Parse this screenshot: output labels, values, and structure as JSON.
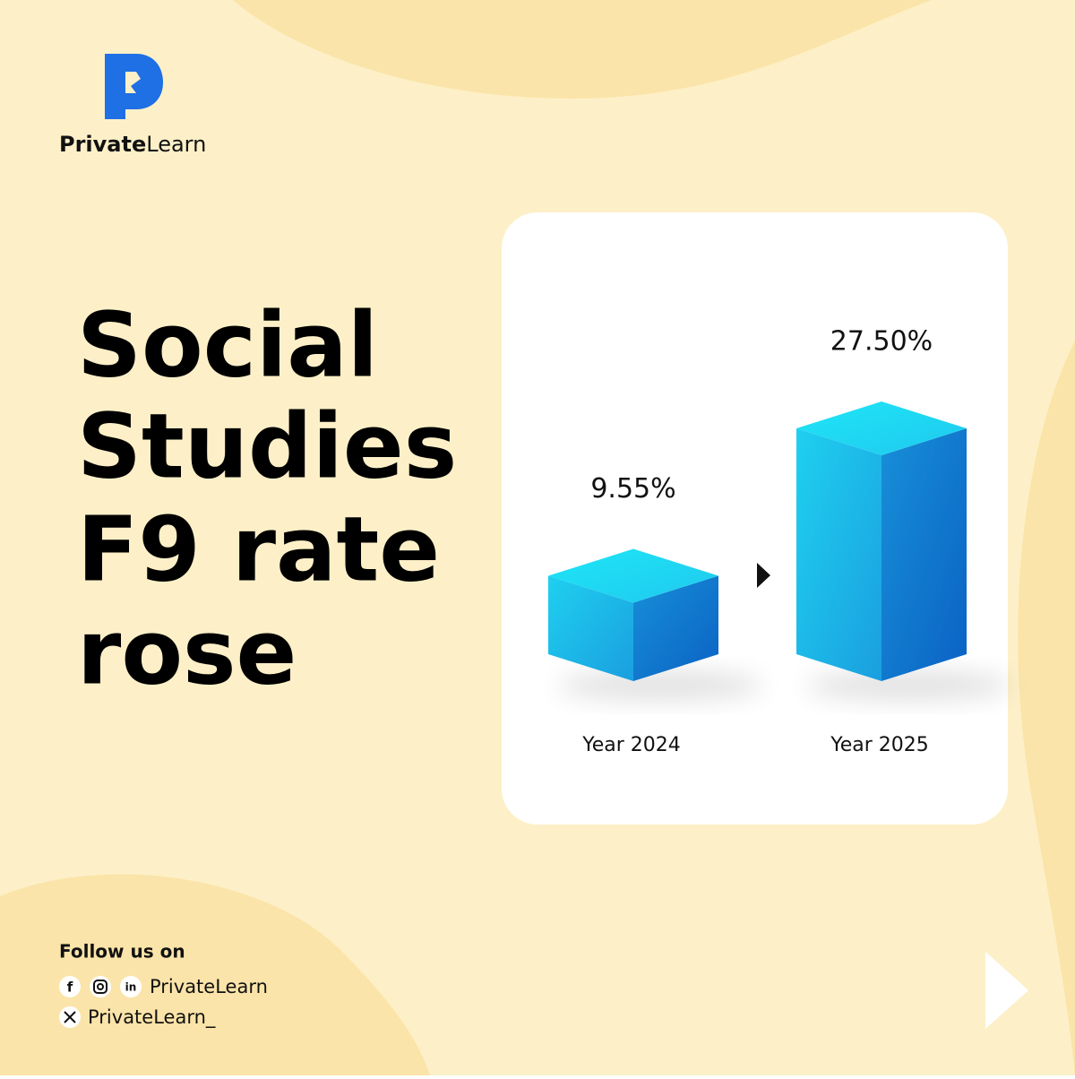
{
  "brand": {
    "name_bold": "Private",
    "name_light": "Learn"
  },
  "headline": [
    "Social",
    "Studies",
    "F9 rate",
    "rose"
  ],
  "chart_data": {
    "type": "bar3d",
    "categories": [
      "Year 2024",
      "Year 2025"
    ],
    "values": [
      9.55,
      27.5
    ],
    "value_labels": [
      "9.55%",
      "27.50%"
    ]
  },
  "footer": {
    "follow": "Follow us on",
    "handle": "PrivateLearn",
    "x_handle": "PrivateLearn_"
  }
}
